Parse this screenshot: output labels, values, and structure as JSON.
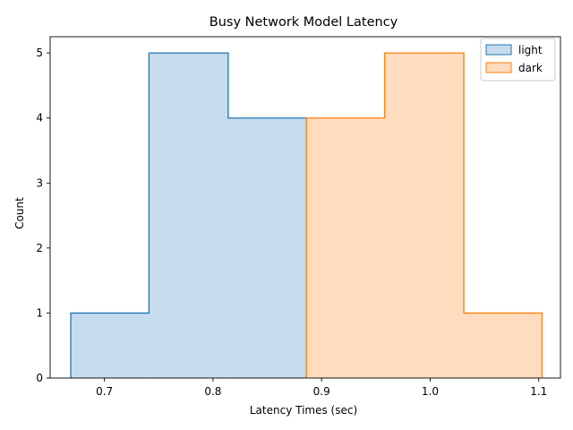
{
  "chart_data": {
    "type": "histogram",
    "title": "Busy Network Model Latency",
    "xlabel": "Latency Times (sec)",
    "ylabel": "Count",
    "xlim": [
      0.65,
      1.12
    ],
    "ylim": [
      0,
      5.25
    ],
    "xticks": [
      0.7,
      0.8,
      0.9,
      1.0,
      1.1
    ],
    "xtick_labels": [
      "0.7",
      "0.8",
      "0.9",
      "1.0",
      "1.1"
    ],
    "yticks": [
      0,
      1,
      2,
      3,
      4,
      5
    ],
    "ytick_labels": [
      "0",
      "1",
      "2",
      "3",
      "4",
      "5"
    ],
    "grid": false,
    "legend_position": "top-right",
    "series": [
      {
        "name": "light",
        "bin_edges": [
          0.669,
          0.741,
          0.814,
          0.886
        ],
        "counts": [
          1,
          5,
          4
        ],
        "color": "#1f77b4",
        "fill_color": "#c6dbed"
      },
      {
        "name": "dark",
        "bin_edges": [
          0.886,
          0.958,
          1.031,
          1.103
        ],
        "counts": [
          4,
          5,
          1
        ],
        "color": "#ff7f0e",
        "fill_color": "#ffdcbe"
      }
    ]
  }
}
